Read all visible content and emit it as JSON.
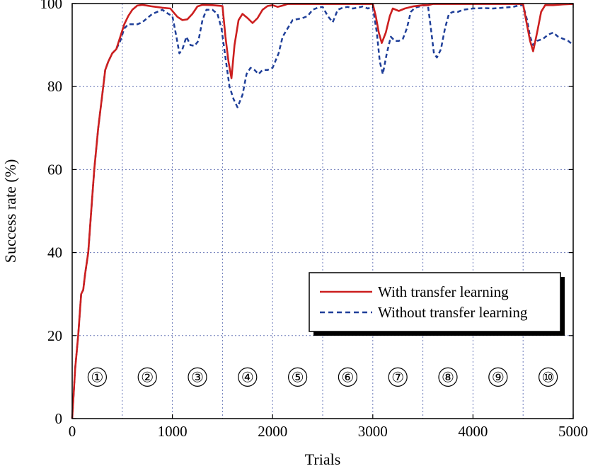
{
  "chart_data": {
    "type": "line",
    "xlabel": "Trials",
    "ylabel": "Success rate (%)",
    "xlim": [
      0,
      5000
    ],
    "ylim": [
      0,
      100
    ],
    "xticks": [
      0,
      1000,
      2000,
      3000,
      4000,
      5000
    ],
    "yticks": [
      0,
      20,
      40,
      60,
      80,
      100
    ],
    "xtick_labels": [
      "0",
      "1000",
      "2000",
      "3000",
      "4000",
      "5000"
    ],
    "ytick_labels": [
      "0",
      "20",
      "40",
      "60",
      "80",
      "100"
    ],
    "grid": true,
    "grid_style": "dotted",
    "legend_position": "lower-right",
    "phase_boundaries": [
      500,
      1000,
      1500,
      2000,
      2500,
      3000,
      3500,
      4000,
      4500
    ],
    "phases": [
      {
        "label": "①",
        "x": 250
      },
      {
        "label": "②",
        "x": 750
      },
      {
        "label": "③",
        "x": 1250
      },
      {
        "label": "④",
        "x": 1750
      },
      {
        "label": "⑤",
        "x": 2250
      },
      {
        "label": "⑥",
        "x": 2750
      },
      {
        "label": "⑦",
        "x": 3250
      },
      {
        "label": "⑧",
        "x": 3750
      },
      {
        "label": "⑨",
        "x": 4250
      },
      {
        "label": "⑩",
        "x": 4750
      }
    ],
    "phase_label_y": 10,
    "series": [
      {
        "name": "With transfer learning",
        "color": "#cc1f1f",
        "dash": "solid",
        "points": [
          [
            0,
            0
          ],
          [
            30,
            12
          ],
          [
            60,
            20
          ],
          [
            90,
            30
          ],
          [
            110,
            31
          ],
          [
            130,
            35
          ],
          [
            160,
            40
          ],
          [
            190,
            50
          ],
          [
            220,
            60
          ],
          [
            260,
            70
          ],
          [
            300,
            78
          ],
          [
            330,
            84
          ],
          [
            360,
            86
          ],
          [
            400,
            88
          ],
          [
            440,
            89
          ],
          [
            480,
            92
          ],
          [
            520,
            95
          ],
          [
            560,
            97
          ],
          [
            600,
            98.5
          ],
          [
            650,
            99.5
          ],
          [
            700,
            99.7
          ],
          [
            800,
            99.3
          ],
          [
            900,
            99
          ],
          [
            980,
            98.8
          ],
          [
            1000,
            98.2
          ],
          [
            1050,
            96.8
          ],
          [
            1100,
            96
          ],
          [
            1150,
            96.2
          ],
          [
            1200,
            97.5
          ],
          [
            1250,
            99.3
          ],
          [
            1300,
            99.7
          ],
          [
            1400,
            99.6
          ],
          [
            1450,
            99.5
          ],
          [
            1500,
            99.4
          ],
          [
            1530,
            92
          ],
          [
            1560,
            86
          ],
          [
            1590,
            82
          ],
          [
            1620,
            90
          ],
          [
            1660,
            96
          ],
          [
            1700,
            97.5
          ],
          [
            1750,
            96.5
          ],
          [
            1800,
            95.3
          ],
          [
            1850,
            96.5
          ],
          [
            1900,
            98.5
          ],
          [
            1950,
            99.4
          ],
          [
            2000,
            99.6
          ],
          [
            2050,
            99.2
          ],
          [
            2100,
            99.5
          ],
          [
            2150,
            99.9
          ],
          [
            2500,
            99.9
          ],
          [
            3000,
            99.9
          ],
          [
            3030,
            97
          ],
          [
            3060,
            93
          ],
          [
            3090,
            90.5
          ],
          [
            3130,
            93
          ],
          [
            3170,
            97
          ],
          [
            3200,
            98.8
          ],
          [
            3260,
            98.2
          ],
          [
            3320,
            98.8
          ],
          [
            3400,
            99.3
          ],
          [
            3500,
            99.6
          ],
          [
            3550,
            99.6
          ],
          [
            3600,
            99.9
          ],
          [
            4000,
            99.9
          ],
          [
            4500,
            99.9
          ],
          [
            4530,
            96
          ],
          [
            4570,
            91
          ],
          [
            4600,
            88.5
          ],
          [
            4640,
            93
          ],
          [
            4680,
            98
          ],
          [
            4720,
            99.6
          ],
          [
            4800,
            99.6
          ],
          [
            4900,
            99.8
          ],
          [
            5000,
            99.9
          ]
        ]
      },
      {
        "name": "Without transfer learning",
        "color": "#1f3f99",
        "dash": "dashed",
        "points": [
          [
            0,
            0
          ],
          [
            30,
            12
          ],
          [
            60,
            20
          ],
          [
            90,
            30
          ],
          [
            110,
            31
          ],
          [
            130,
            35
          ],
          [
            160,
            40
          ],
          [
            190,
            50
          ],
          [
            220,
            60
          ],
          [
            260,
            70
          ],
          [
            300,
            78
          ],
          [
            330,
            84
          ],
          [
            360,
            86
          ],
          [
            400,
            88
          ],
          [
            440,
            89
          ],
          [
            480,
            91
          ],
          [
            520,
            94
          ],
          [
            560,
            95
          ],
          [
            650,
            95
          ],
          [
            700,
            95.5
          ],
          [
            750,
            96.5
          ],
          [
            800,
            97.5
          ],
          [
            850,
            98
          ],
          [
            900,
            98.5
          ],
          [
            960,
            97.5
          ],
          [
            1000,
            97
          ],
          [
            1040,
            92
          ],
          [
            1070,
            88
          ],
          [
            1100,
            89
          ],
          [
            1140,
            92
          ],
          [
            1180,
            90
          ],
          [
            1220,
            89.8
          ],
          [
            1260,
            91
          ],
          [
            1300,
            96
          ],
          [
            1340,
            98.5
          ],
          [
            1400,
            98.5
          ],
          [
            1450,
            97.5
          ],
          [
            1490,
            94
          ],
          [
            1530,
            87
          ],
          [
            1570,
            80
          ],
          [
            1610,
            77
          ],
          [
            1650,
            75
          ],
          [
            1700,
            78
          ],
          [
            1740,
            83
          ],
          [
            1780,
            84.5
          ],
          [
            1820,
            84
          ],
          [
            1860,
            83
          ],
          [
            1900,
            84
          ],
          [
            1950,
            84
          ],
          [
            2000,
            84.5
          ],
          [
            2060,
            88
          ],
          [
            2100,
            92
          ],
          [
            2150,
            94
          ],
          [
            2200,
            96
          ],
          [
            2300,
            96.5
          ],
          [
            2350,
            97
          ],
          [
            2400,
            98.5
          ],
          [
            2450,
            99
          ],
          [
            2500,
            99.2
          ],
          [
            2550,
            97
          ],
          [
            2600,
            95.5
          ],
          [
            2650,
            98.5
          ],
          [
            2700,
            99
          ],
          [
            2750,
            99.2
          ],
          [
            2800,
            98.8
          ],
          [
            2850,
            99
          ],
          [
            2900,
            99.3
          ],
          [
            2950,
            98.8
          ],
          [
            3000,
            99.2
          ],
          [
            3040,
            93
          ],
          [
            3070,
            86
          ],
          [
            3100,
            83
          ],
          [
            3140,
            88
          ],
          [
            3180,
            92
          ],
          [
            3220,
            91
          ],
          [
            3260,
            91
          ],
          [
            3300,
            91.5
          ],
          [
            3340,
            94
          ],
          [
            3380,
            98
          ],
          [
            3420,
            99
          ],
          [
            3500,
            99.5
          ],
          [
            3550,
            99.6
          ],
          [
            3580,
            94
          ],
          [
            3610,
            88
          ],
          [
            3640,
            87
          ],
          [
            3680,
            89
          ],
          [
            3720,
            94
          ],
          [
            3760,
            97.5
          ],
          [
            3800,
            98
          ],
          [
            3850,
            98
          ],
          [
            3900,
            98.5
          ],
          [
            4000,
            98.8
          ],
          [
            4100,
            98.9
          ],
          [
            4200,
            98.8
          ],
          [
            4300,
            99
          ],
          [
            4400,
            99.2
          ],
          [
            4450,
            99.5
          ],
          [
            4500,
            99.6
          ],
          [
            4540,
            96
          ],
          [
            4570,
            92
          ],
          [
            4600,
            90
          ],
          [
            4640,
            91
          ],
          [
            4700,
            91.5
          ],
          [
            4750,
            92.5
          ],
          [
            4800,
            93
          ],
          [
            4850,
            92
          ],
          [
            4900,
            91.5
          ],
          [
            4950,
            91
          ],
          [
            5000,
            90
          ]
        ]
      }
    ]
  }
}
